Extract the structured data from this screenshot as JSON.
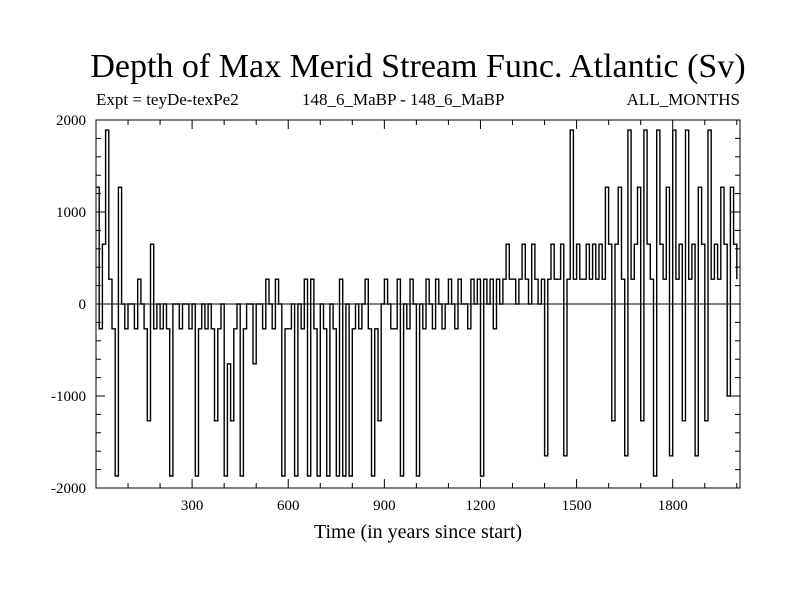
{
  "chart_data": {
    "type": "line",
    "title": "Depth of Max Merid Stream Func. Atlantic (Sv)",
    "subtitle_left": "Expt = teyDe-texPe2",
    "subtitle_center": "148_6_MaBP - 148_6_MaBP",
    "subtitle_right": "ALL_MONTHS",
    "xlabel": "Time (in years since start)",
    "ylabel": "",
    "xlim": [
      0,
      2010
    ],
    "ylim": [
      -2000,
      2000
    ],
    "x_ticks": [
      300,
      600,
      900,
      1200,
      1500,
      1800
    ],
    "y_ticks": [
      2000,
      1000,
      0,
      -1000,
      -2000
    ],
    "grid": false,
    "line_color": "#000000",
    "zero_line": true,
    "x": [
      0,
      10,
      20,
      30,
      40,
      50,
      60,
      70,
      80,
      90,
      100,
      110,
      120,
      130,
      140,
      150,
      160,
      170,
      180,
      190,
      200,
      210,
      220,
      230,
      240,
      250,
      260,
      270,
      280,
      290,
      300,
      310,
      320,
      330,
      340,
      350,
      360,
      370,
      380,
      390,
      400,
      410,
      420,
      430,
      440,
      450,
      460,
      470,
      480,
      490,
      500,
      510,
      520,
      530,
      540,
      550,
      560,
      570,
      580,
      590,
      600,
      610,
      620,
      630,
      640,
      650,
      660,
      670,
      680,
      690,
      700,
      710,
      720,
      730,
      740,
      750,
      760,
      770,
      780,
      790,
      800,
      810,
      820,
      830,
      840,
      850,
      860,
      870,
      880,
      890,
      900,
      910,
      920,
      930,
      940,
      950,
      960,
      970,
      980,
      990,
      1000,
      1010,
      1020,
      1030,
      1040,
      1050,
      1060,
      1070,
      1080,
      1090,
      1100,
      1110,
      1120,
      1130,
      1140,
      1150,
      1160,
      1170,
      1180,
      1190,
      1200,
      1210,
      1220,
      1230,
      1240,
      1250,
      1260,
      1270,
      1280,
      1290,
      1300,
      1310,
      1320,
      1330,
      1340,
      1350,
      1360,
      1370,
      1380,
      1390,
      1400,
      1410,
      1420,
      1430,
      1440,
      1450,
      1460,
      1470,
      1480,
      1490,
      1500,
      1510,
      1520,
      1530,
      1540,
      1550,
      1560,
      1570,
      1580,
      1590,
      1600,
      1610,
      1620,
      1630,
      1640,
      1650,
      1660,
      1670,
      1680,
      1690,
      1700,
      1710,
      1720,
      1730,
      1740,
      1750,
      1760,
      1770,
      1780,
      1790,
      1800,
      1810,
      1820,
      1830,
      1840,
      1850,
      1860,
      1870,
      1880,
      1890,
      1900,
      1910,
      1920,
      1930,
      1940,
      1950,
      1960,
      1970,
      1980,
      1990,
      2000
    ],
    "y": [
      1270,
      -270,
      650,
      1890,
      270,
      -270,
      -1870,
      1270,
      0,
      -270,
      0,
      0,
      -270,
      270,
      0,
      -270,
      -1270,
      650,
      -270,
      0,
      -270,
      0,
      -270,
      -1870,
      0,
      0,
      -270,
      0,
      0,
      -270,
      0,
      -1870,
      -270,
      0,
      -270,
      0,
      -270,
      -1270,
      -270,
      0,
      -1870,
      -650,
      -1270,
      -270,
      0,
      -1870,
      -270,
      0,
      0,
      -650,
      0,
      0,
      -270,
      270,
      0,
      -270,
      270,
      0,
      -1870,
      -270,
      -270,
      0,
      -1870,
      0,
      -270,
      270,
      -1870,
      270,
      -270,
      -1870,
      0,
      -270,
      -1870,
      0,
      -270,
      -1870,
      270,
      -1870,
      0,
      -1870,
      -270,
      0,
      -270,
      0,
      270,
      -270,
      -1870,
      -270,
      -1270,
      0,
      270,
      0,
      -270,
      -270,
      270,
      -1870,
      0,
      -270,
      270,
      0,
      -1870,
      0,
      -270,
      270,
      0,
      -270,
      270,
      0,
      -270,
      0,
      270,
      0,
      -270,
      270,
      0,
      0,
      -270,
      270,
      0,
      270,
      -1870,
      270,
      0,
      270,
      -270,
      270,
      0,
      270,
      650,
      270,
      270,
      0,
      270,
      650,
      270,
      0,
      650,
      270,
      0,
      270,
      -1650,
      270,
      650,
      270,
      270,
      650,
      -1650,
      270,
      1890,
      270,
      650,
      270,
      270,
      650,
      270,
      650,
      270,
      650,
      270,
      1270,
      650,
      -1270,
      650,
      1270,
      270,
      -1650,
      1890,
      270,
      650,
      1270,
      -1270,
      1890,
      650,
      270,
      -1870,
      1890,
      650,
      270,
      1270,
      -1650,
      1890,
      270,
      650,
      -1270,
      1890,
      270,
      650,
      -1650,
      1270,
      650,
      -1270,
      1890,
      270,
      650,
      270,
      1270,
      650,
      -1000,
      1270,
      650,
      270
    ]
  }
}
